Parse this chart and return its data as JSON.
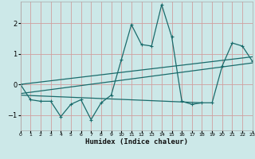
{
  "xlabel": "Humidex (Indice chaleur)",
  "bg_color": "#cce8e8",
  "grid_color": "#d0a0a0",
  "line_color": "#1a6b6b",
  "xlim": [
    0,
    23
  ],
  "ylim": [
    -1.5,
    2.7
  ],
  "yticks": [
    -1,
    0,
    1,
    2
  ],
  "xticks": [
    0,
    1,
    2,
    3,
    4,
    5,
    6,
    7,
    8,
    9,
    10,
    11,
    12,
    13,
    14,
    15,
    16,
    17,
    18,
    19,
    20,
    21,
    22,
    23
  ],
  "main_x": [
    0,
    1,
    2,
    3,
    4,
    5,
    6,
    7,
    8,
    9,
    10,
    11,
    12,
    13,
    14,
    15,
    16,
    17,
    18,
    19,
    20,
    21,
    22,
    23
  ],
  "main_y": [
    0.0,
    -0.5,
    -0.55,
    -0.55,
    -1.05,
    -0.65,
    -0.5,
    -1.15,
    -0.6,
    -0.35,
    0.8,
    1.95,
    1.3,
    1.25,
    2.6,
    1.55,
    -0.55,
    -0.65,
    -0.6,
    -0.6,
    0.6,
    1.35,
    1.25,
    0.75
  ],
  "line1_x": [
    0,
    23
  ],
  "line1_y": [
    0.0,
    0.9
  ],
  "line2_x": [
    0,
    23
  ],
  "line2_y": [
    -0.3,
    0.7
  ],
  "line3_x": [
    0,
    18
  ],
  "line3_y": [
    -0.35,
    -0.6
  ]
}
